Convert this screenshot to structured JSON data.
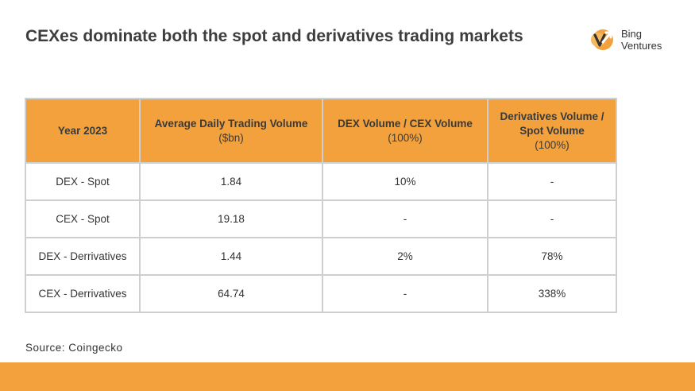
{
  "title": "CEXes dominate both the spot and derivatives trading markets",
  "logo": {
    "line1": "Bing",
    "line2": "Ventures",
    "icon": "bing-ventures-logo-icon",
    "accent": "#f2a13c"
  },
  "table": {
    "headers": [
      {
        "main": "Year 2023",
        "sub": ""
      },
      {
        "main": "Average Daily Trading Volume",
        "sub": "($bn)"
      },
      {
        "main": "DEX Volume / CEX Volume",
        "sub": "(100%)"
      },
      {
        "main": "Derivatives Volume / Spot Volume",
        "sub": "(100%)"
      }
    ],
    "rows": [
      [
        "DEX - Spot",
        "1.84",
        "10%",
        "-"
      ],
      [
        "CEX - Spot",
        "19.18",
        "-",
        "-"
      ],
      [
        "DEX - Derrivatives",
        "1.44",
        "2%",
        "78%"
      ],
      [
        "CEX - Derrivatives",
        "64.74",
        "-",
        "338%"
      ]
    ]
  },
  "source": "Source: Coingecko",
  "colors": {
    "header_bg": "#f2a13c",
    "footer_bar": "#f2a13c",
    "border": "#cfcfcf"
  }
}
